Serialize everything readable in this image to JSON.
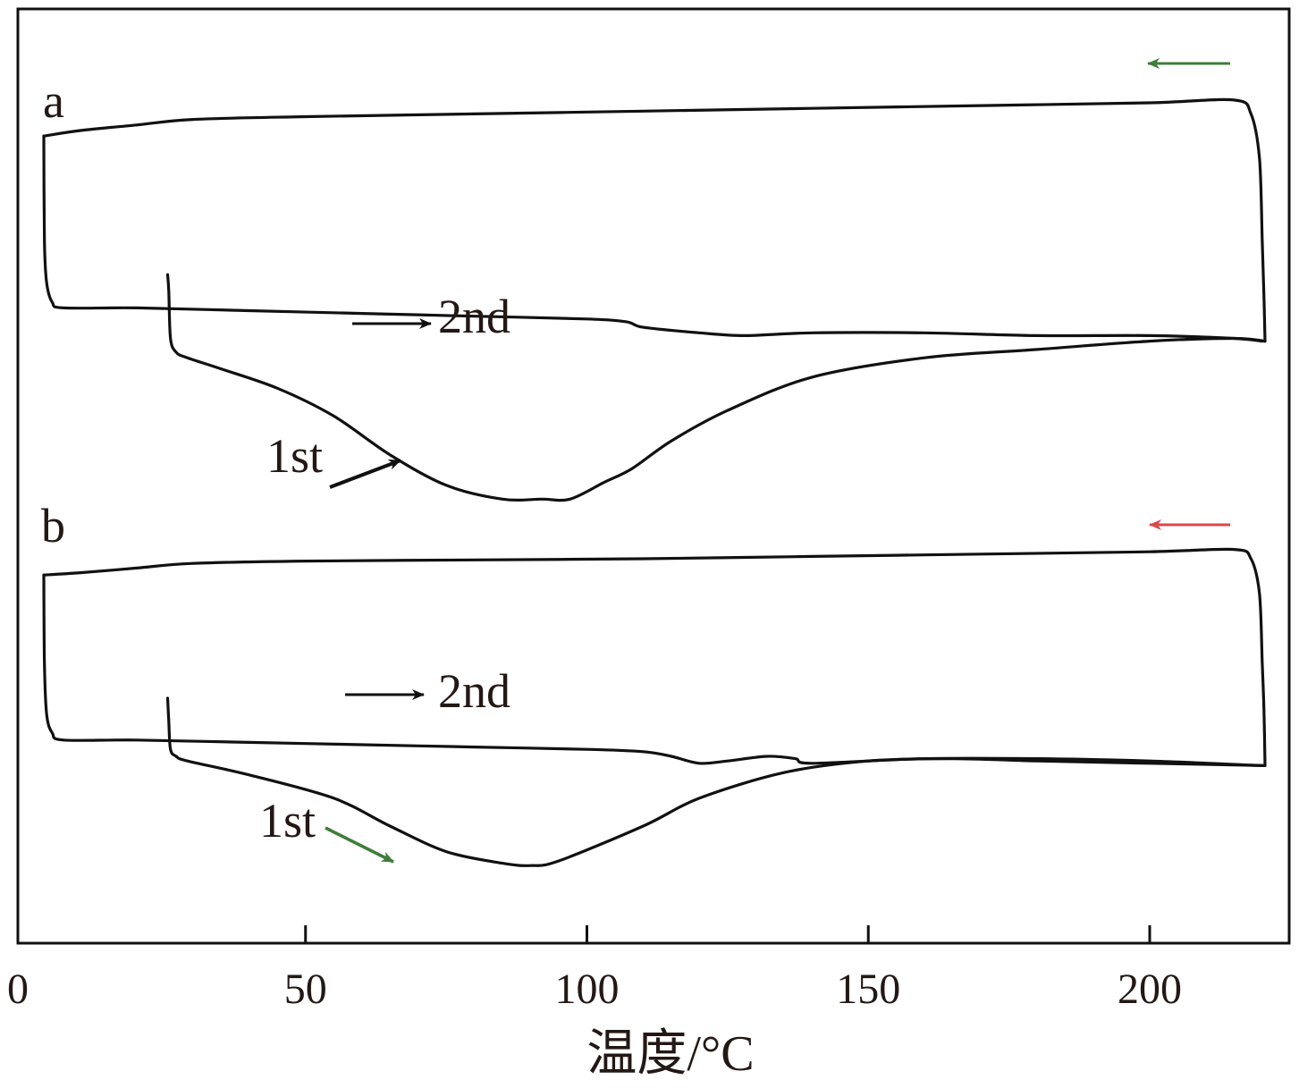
{
  "chart_data": {
    "type": "line",
    "xlabel": "温度/°C",
    "ylabel": "",
    "xlim": [
      0,
      225
    ],
    "x_ticks": [
      0,
      50,
      100,
      150,
      200
    ],
    "x_tick_labels": [
      "0",
      "50",
      "100",
      "150",
      "200"
    ],
    "yticks_shown": false,
    "grid": false,
    "panels": [
      {
        "label": "a",
        "series": [
          {
            "name": "1st",
            "x": [
              25.5,
              25.7,
              26,
              27,
              29,
              35,
              45,
              55,
              65,
              75,
              85,
              92,
              97,
              103,
              108,
              115,
              125,
              140,
              160,
              180,
              200,
              215,
              220.5
            ],
            "y": [
              -1.2,
              -1.8,
              -3.5,
              -4.0,
              -4.2,
              -4.6,
              -5.3,
              -6.3,
              -7.7,
              -8.8,
              -9.3,
              -9.3,
              -9.3,
              -8.7,
              -8.2,
              -7.2,
              -6.1,
              -4.9,
              -4.2,
              -3.9,
              -3.6,
              -3.5,
              -3.6
            ]
          },
          {
            "name": "2nd",
            "x": [
              3.5,
              3.6,
              4,
              5,
              7,
              20,
              40,
              60,
              80,
              100,
              107,
              110,
              120,
              128,
              140,
              160,
              180,
              200,
              215,
              220
            ],
            "y": [
              3.8,
              0,
              -1.5,
              -2.2,
              -2.4,
              -2.4,
              -2.5,
              -2.6,
              -2.7,
              -2.8,
              -2.9,
              -3.1,
              -3.3,
              -3.4,
              -3.3,
              -3.3,
              -3.4,
              -3.4,
              -3.5,
              -3.6
            ]
          },
          {
            "name": "",
            "x": [
              3.5,
              10,
              20,
              30,
              50,
              80,
              110,
              140,
              170,
              200,
              215,
              218,
              219.5,
              220,
              220.3,
              220.5
            ],
            "y": [
              3.8,
              4.0,
              4.2,
              4.4,
              4.5,
              4.6,
              4.7,
              4.8,
              4.9,
              5.0,
              5.1,
              4.6,
              3.0,
              0,
              -2.0,
              -3.6
            ]
          }
        ],
        "annotations": [
          "2nd",
          "1st"
        ],
        "direction_arrow_color": "#3f7d3a"
      },
      {
        "label": "b",
        "series": [
          {
            "name": "1st",
            "x": [
              25.5,
              25.7,
              26,
              27,
              29,
              40,
              55,
              65,
              75,
              85,
              90,
              95,
              110,
              120,
              135,
              150,
              165,
              180,
              200,
              220.5
            ],
            "y": [
              -1.5,
              -2.5,
              -3.7,
              -4.0,
              -4.2,
              -4.8,
              -5.8,
              -7.0,
              -8.1,
              -8.6,
              -8.7,
              -8.5,
              -7.0,
              -5.8,
              -4.7,
              -4.2,
              -4.1,
              -4.2,
              -4.3,
              -4.4
            ]
          },
          {
            "name": "2nd",
            "x": [
              3.5,
              3.6,
              4,
              5,
              7,
              20,
              40,
              60,
              80,
              100,
              110,
              115,
              120,
              125,
              132,
              137,
              140,
              160,
              180,
              200,
              220
            ],
            "y": [
              3.8,
              0,
              -2.2,
              -3.0,
              -3.3,
              -3.3,
              -3.4,
              -3.5,
              -3.6,
              -3.7,
              -3.8,
              -4.0,
              -4.3,
              -4.2,
              -4.0,
              -4.1,
              -4.3,
              -4.1,
              -4.1,
              -4.2,
              -4.4
            ]
          },
          {
            "name": "",
            "x": [
              3.5,
              10,
              20,
              30,
              50,
              80,
              110,
              140,
              170,
              200,
              215,
              218,
              219.5,
              220,
              220.3,
              220.5
            ],
            "y": [
              3.8,
              3.9,
              4.1,
              4.3,
              4.4,
              4.45,
              4.5,
              4.6,
              4.7,
              4.8,
              4.9,
              4.5,
              3.0,
              0,
              -2.0,
              -4.4
            ]
          }
        ],
        "annotations": [
          "2nd",
          "1st"
        ],
        "direction_arrow_color": "#d9484b"
      }
    ]
  },
  "colors": {
    "curve": "#111111",
    "text": "#231815",
    "arrow_dark": "#111111",
    "arrow_green": "#3f7d3a",
    "arrow_red": "#d9484b"
  }
}
